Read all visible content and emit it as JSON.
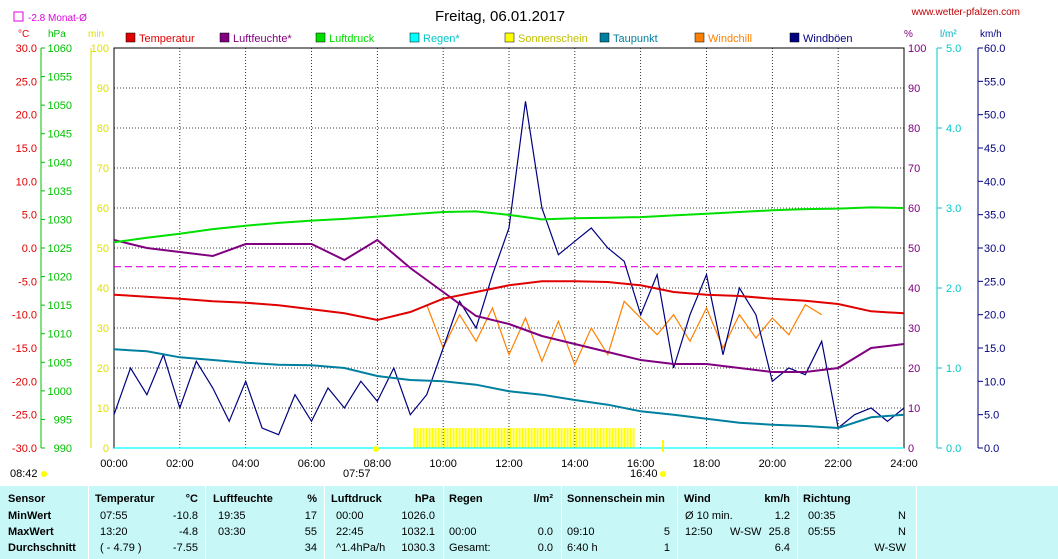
{
  "header": {
    "title": "Freitag, 06.01.2017",
    "website": "www.wetter-pfalzen.com",
    "monthly_avg_label": "-2.8 Monat-Ø"
  },
  "axis_units": {
    "temp": "°C",
    "pressure": "hPa",
    "min": "min",
    "percent": "%",
    "rain": "l/m²",
    "wind": "km/h"
  },
  "legend": [
    {
      "name": "Temperatur",
      "color": "#e00000"
    },
    {
      "name": "Luftfeuchte*",
      "color": "#800080"
    },
    {
      "name": "Luftdruck",
      "color": "#00e000"
    },
    {
      "name": "Regen*",
      "color": "#00ffff"
    },
    {
      "name": "Sonnenschein",
      "color": "#ffff00"
    },
    {
      "name": "Taupunkt",
      "color": "#0080a0"
    },
    {
      "name": "Windchill",
      "color": "#ff8000"
    },
    {
      "name": "Windböen",
      "color": "#000080"
    }
  ],
  "axes": {
    "temp_ticks": [
      "30.0",
      "25.0",
      "20.0",
      "15.0",
      "10.0",
      "5.0",
      "0.0",
      "-5.0",
      "-10.0",
      "-15.0",
      "-20.0",
      "-25.0",
      "-30.0"
    ],
    "pressure_ticks": [
      "1060",
      "1055",
      "1050",
      "1045",
      "1040",
      "1035",
      "1030",
      "1025",
      "1020",
      "1015",
      "1010",
      "1005",
      "1000",
      "995",
      "990"
    ],
    "min_ticks": [
      "100",
      "90",
      "80",
      "70",
      "60",
      "50",
      "40",
      "30",
      "20",
      "10",
      "0"
    ],
    "percent_ticks": [
      "100",
      "90",
      "80",
      "70",
      "60",
      "50",
      "40",
      "30",
      "20",
      "10",
      "0"
    ],
    "rain_ticks": [
      "5.0",
      "4.0",
      "3.0",
      "2.0",
      "1.0",
      "0.0"
    ],
    "wind_ticks": [
      "60.0",
      "55.0",
      "50.0",
      "45.0",
      "40.0",
      "35.0",
      "30.0",
      "25.0",
      "20.0",
      "15.0",
      "10.0",
      "5.0",
      "0.0"
    ],
    "time_ticks": [
      "00:00",
      "02:00",
      "04:00",
      "06:00",
      "08:00",
      "10:00",
      "12:00",
      "14:00",
      "16:00",
      "18:00",
      "20:00",
      "22:00",
      "24:00"
    ]
  },
  "markers": {
    "sunrise": "08:42",
    "sunset_1": "07:57",
    "sunset_2": "16:40"
  },
  "chart_data": {
    "type": "line",
    "title": "Freitag, 06.01.2017",
    "x_range": [
      "00:00",
      "24:00"
    ],
    "temp_range_c": [
      -30,
      30
    ],
    "pressure_range_hpa": [
      990,
      1060
    ],
    "humidity_range_pct": [
      0,
      100
    ],
    "rain_range_lm2": [
      0,
      5
    ],
    "wind_range_kmh": [
      0,
      60
    ],
    "monthly_avg_temp_c": -2.8,
    "series": [
      {
        "name": "Temperatur",
        "unit": "°C",
        "x": [
          0,
          1,
          2,
          3,
          4,
          5,
          6,
          7,
          8,
          9,
          10,
          11,
          12,
          13,
          14,
          15,
          16,
          17,
          18,
          19,
          20,
          21,
          22,
          23,
          24
        ],
        "values": [
          -7.0,
          -7.3,
          -7.6,
          -8.0,
          -8.2,
          -8.6,
          -9.2,
          -9.8,
          -10.8,
          -9.6,
          -7.6,
          -6.6,
          -5.6,
          -5.0,
          -5.0,
          -5.1,
          -5.6,
          -6.6,
          -7.0,
          -7.2,
          -7.6,
          -7.9,
          -8.4,
          -9.5,
          -9.8
        ]
      },
      {
        "name": "Luftfeuchte*",
        "unit": "%",
        "x": [
          0,
          1,
          2,
          3,
          4,
          5,
          6,
          7,
          8,
          9,
          10,
          11,
          12,
          13,
          14,
          15,
          16,
          17,
          18,
          19,
          20,
          21,
          22,
          23,
          24
        ],
        "values": [
          52,
          50,
          49,
          48,
          51,
          51,
          51,
          47,
          52,
          45,
          39,
          33,
          31,
          28,
          26,
          24,
          22,
          21,
          21,
          20,
          19,
          19,
          20,
          25,
          26
        ]
      },
      {
        "name": "Luftdruck",
        "unit": "hPa",
        "x": [
          0,
          1,
          2,
          3,
          4,
          5,
          6,
          7,
          8,
          9,
          10,
          11,
          12,
          13,
          14,
          15,
          16,
          17,
          18,
          19,
          20,
          21,
          22,
          23,
          24
        ],
        "values": [
          1026.0,
          1026.8,
          1027.5,
          1028.3,
          1028.9,
          1029.4,
          1029.8,
          1030.1,
          1030.5,
          1030.9,
          1031.3,
          1031.4,
          1030.8,
          1030.0,
          1030.2,
          1030.3,
          1030.4,
          1030.7,
          1031.0,
          1031.3,
          1031.6,
          1031.8,
          1031.9,
          1032.1,
          1032.0
        ]
      },
      {
        "name": "Taupunkt",
        "unit": "°C",
        "x": [
          0,
          1,
          2,
          3,
          4,
          5,
          6,
          7,
          8,
          9,
          10,
          11,
          12,
          13,
          14,
          15,
          16,
          17,
          18,
          19,
          20,
          21,
          22,
          23,
          24
        ],
        "values": [
          -15.2,
          -15.5,
          -16.4,
          -16.8,
          -17.2,
          -17.5,
          -17.6,
          -18.0,
          -19.2,
          -19.8,
          -20.0,
          -20.5,
          -21.5,
          -22.0,
          -22.8,
          -23.5,
          -24.5,
          -25.0,
          -25.6,
          -26.2,
          -26.5,
          -26.7,
          -27.0,
          -25.4,
          -25.0
        ]
      },
      {
        "name": "Windchill",
        "unit": "°C",
        "x": [
          9.5,
          10,
          10.5,
          11,
          11.5,
          12,
          12.5,
          13,
          13.5,
          14,
          14.5,
          15,
          15.5,
          16,
          16.5,
          17,
          17.5,
          18,
          18.5,
          19,
          19.5,
          20,
          20.5,
          21,
          21.5
        ],
        "values": [
          -8.5,
          -15.0,
          -10.0,
          -14.0,
          -9.0,
          -16.0,
          -10.5,
          -17.0,
          -11.0,
          -17.5,
          -12.0,
          -16.0,
          -8.0,
          -10.5,
          -13.0,
          -10.0,
          -14.0,
          -9.0,
          -15.0,
          -10.0,
          -13.5,
          -10.5,
          -13.0,
          -8.5,
          -10.0
        ]
      },
      {
        "name": "Windböen",
        "unit": "km/h",
        "x": [
          0,
          0.5,
          1,
          1.5,
          2,
          2.5,
          3,
          3.5,
          4,
          4.5,
          5,
          5.5,
          6,
          6.5,
          7,
          7.5,
          8,
          8.5,
          9,
          9.5,
          10,
          10.5,
          11,
          11.5,
          12,
          12.5,
          13,
          13.5,
          14,
          14.5,
          15,
          15.5,
          16,
          16.5,
          17,
          17.5,
          18,
          18.5,
          19,
          19.5,
          20,
          20.5,
          21,
          21.5,
          22,
          22.5,
          23,
          23.5,
          24
        ],
        "values": [
          5,
          12,
          8,
          14,
          6,
          13,
          9,
          4,
          10,
          3,
          2,
          8,
          4,
          9,
          6,
          10,
          7,
          12,
          5,
          8,
          15,
          22,
          18,
          26,
          33,
          52,
          36,
          29,
          31,
          33,
          30,
          28,
          20,
          26,
          12,
          20,
          26,
          14,
          24,
          20,
          10,
          12,
          11,
          16,
          3,
          5,
          6,
          4,
          6
        ]
      },
      {
        "name": "Sonnenschein",
        "unit": "min",
        "x": [
          9.1,
          15.8
        ],
        "values": [
          5,
          5
        ]
      },
      {
        "name": "Regen*",
        "unit": "l/m²",
        "x": [
          0,
          24
        ],
        "values": [
          0.0,
          0.0
        ]
      }
    ]
  },
  "table": {
    "headers": {
      "sensor": "Sensor",
      "temperatur": "Temperatur",
      "temp_unit": "°C",
      "luftfeuchte": "Luftfeuchte",
      "hum_unit": "%",
      "luftdruck": "Luftdruck",
      "press_unit": "hPa",
      "regen": "Regen",
      "rain_unit": "l/m²",
      "sonnenschein": "Sonnenschein min",
      "wind": "Wind",
      "wind_unit": "km/h",
      "richtung": "Richtung"
    },
    "rows": [
      {
        "label": "MinWert",
        "temp_time": "07:55",
        "temp_val": "-10.8",
        "hum_time": "19:35",
        "hum_val": "17",
        "press_time": "00:00",
        "press_val": "1026.0",
        "rain_time": "",
        "rain_val": "",
        "sun_time": "",
        "sun_val": "",
        "wind_time": "Ø 10 min.",
        "wind_dir": "",
        "wind_val": "1.2",
        "dir_time": "00:35",
        "dir_val": "N"
      },
      {
        "label": "MaxWert",
        "temp_time": "13:20",
        "temp_val": "-4.8",
        "hum_time": "03:30",
        "hum_val": "55",
        "press_time": "22:45",
        "press_val": "1032.1",
        "rain_time": "00:00",
        "rain_val": "0.0",
        "sun_time": "09:10",
        "sun_val": "5",
        "wind_time": "12:50",
        "wind_dir": "W-SW",
        "wind_val": "25.8",
        "dir_time": "05:55",
        "dir_val": "N"
      },
      {
        "label": "Durchschnitt",
        "temp_time": "( - 4.79 )",
        "temp_val": "-7.55",
        "hum_time": "",
        "hum_val": "34",
        "press_time": "^1.4hPa/h",
        "press_val": "1030.3",
        "rain_time": "Gesamt:",
        "rain_val": "0.0",
        "sun_time": "6:40 h",
        "sun_val": "1",
        "wind_time": "",
        "wind_dir": "",
        "wind_val": "6.4",
        "dir_time": "",
        "dir_val": "W-SW"
      }
    ]
  }
}
